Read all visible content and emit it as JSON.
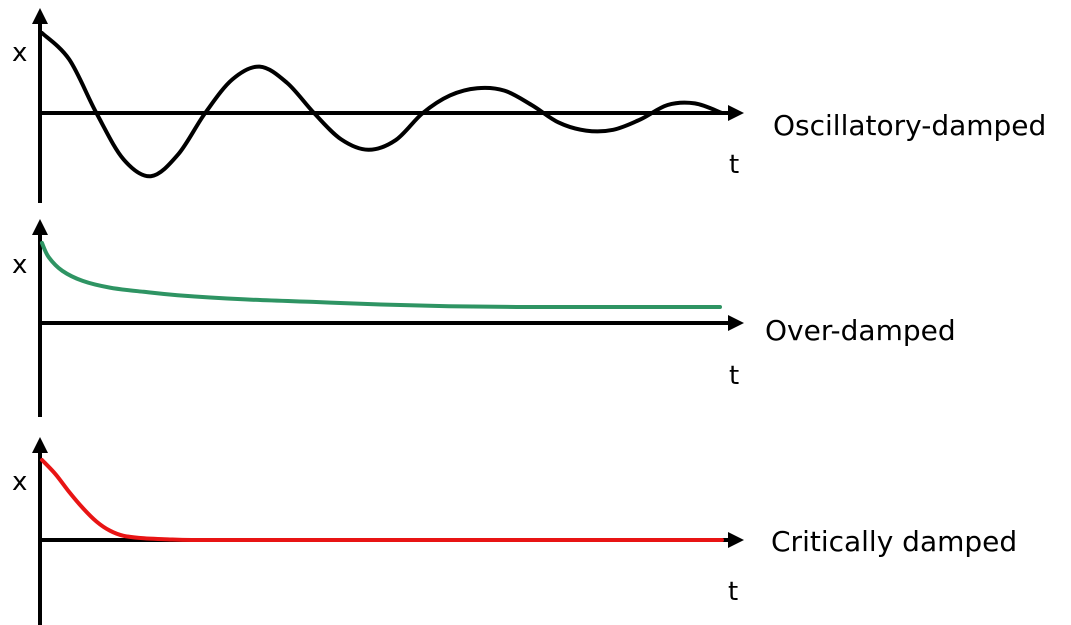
{
  "chart_data": [
    {
      "type": "line",
      "title": "Oscillatory-damped",
      "xlabel": "t",
      "ylabel": "x",
      "grid": false,
      "xlim": [
        0,
        10
      ],
      "ylim": [
        -1.3,
        1.3
      ],
      "series": [
        {
          "color": "#000000",
          "x": [
            0.0,
            0.4,
            0.8,
            1.2,
            1.6,
            2.0,
            2.4,
            2.8,
            3.2,
            3.6,
            4.0,
            4.4,
            4.8,
            5.2,
            5.6,
            6.0,
            6.4,
            6.8,
            7.2,
            7.6,
            8.0,
            8.4,
            8.8,
            9.2,
            9.6,
            10.0
          ],
          "y": [
            1.0,
            0.67,
            0.0,
            -0.58,
            -0.79,
            -0.52,
            0.0,
            0.42,
            0.58,
            0.38,
            0.0,
            -0.33,
            -0.46,
            -0.34,
            0.0,
            0.22,
            0.31,
            0.28,
            0.1,
            -0.12,
            -0.22,
            -0.21,
            -0.08,
            0.1,
            0.12,
            0.0
          ]
        }
      ]
    },
    {
      "type": "line",
      "title": "Over-damped",
      "xlabel": "t",
      "ylabel": "x",
      "grid": false,
      "xlim": [
        0,
        10
      ],
      "ylim": [
        -1.0,
        1.0
      ],
      "series": [
        {
          "color": "#2e9463",
          "x": [
            0.0,
            0.1,
            0.3,
            0.6,
            1.0,
            1.5,
            2.0,
            3.0,
            4.0,
            5.0,
            6.0,
            7.0,
            8.0,
            9.0,
            10.0
          ],
          "y": [
            0.95,
            0.78,
            0.62,
            0.5,
            0.42,
            0.37,
            0.33,
            0.28,
            0.25,
            0.22,
            0.2,
            0.19,
            0.19,
            0.19,
            0.19
          ]
        }
      ]
    },
    {
      "type": "line",
      "title": "Critically damped",
      "xlabel": "t",
      "ylabel": "x",
      "grid": false,
      "xlim": [
        0,
        10
      ],
      "ylim": [
        -1.0,
        1.0
      ],
      "series": [
        {
          "color": "#e81414",
          "x": [
            0.0,
            0.2,
            0.4,
            0.6,
            0.8,
            1.0,
            1.2,
            1.5,
            1.8,
            2.2,
            3.0,
            5.0,
            7.0,
            10.0
          ],
          "y": [
            0.95,
            0.78,
            0.57,
            0.38,
            0.22,
            0.11,
            0.05,
            0.02,
            0.01,
            0.0,
            0.0,
            0.0,
            0.0,
            0.0
          ]
        }
      ]
    }
  ]
}
